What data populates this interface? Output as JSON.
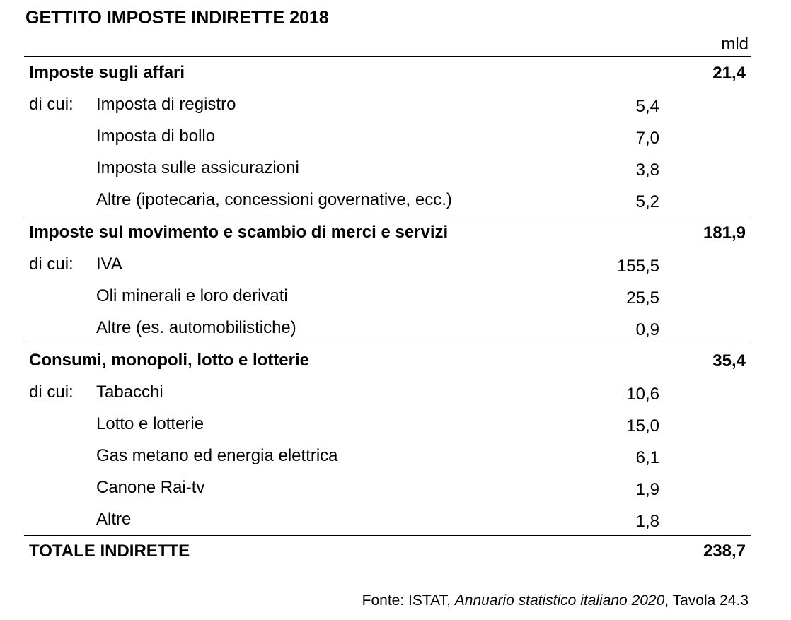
{
  "title": "GETTITO IMPOSTE INDIRETTE 2018",
  "unit": "mld",
  "prefix": "di cui:",
  "sections": [
    {
      "label": "Imposte sugli affari",
      "total": "21,4",
      "items": [
        {
          "label": "Imposta di registro",
          "value": "5,4"
        },
        {
          "label": "Imposta di bollo",
          "value": "7,0"
        },
        {
          "label": "Imposta sulle assicurazioni",
          "value": "3,8"
        },
        {
          "label": "Altre (ipotecaria, concessioni governative, ecc.)",
          "value": "5,2"
        }
      ]
    },
    {
      "label": "Imposte sul movimento e scambio di merci e servizi",
      "total": "181,9",
      "items": [
        {
          "label": "IVA",
          "value": "155,5"
        },
        {
          "label": "Oli minerali e loro derivati",
          "value": "25,5"
        },
        {
          "label": "Altre (es. automobilistiche)",
          "value": "0,9"
        }
      ]
    },
    {
      "label": "Consumi, monopoli, lotto e lotterie",
      "total": "35,4",
      "items": [
        {
          "label": "Tabacchi",
          "value": "10,6"
        },
        {
          "label": "Lotto e lotterie",
          "value": "15,0"
        },
        {
          "label": "Gas metano ed energia elettrica",
          "value": "6,1"
        },
        {
          "label": "Canone Rai-tv",
          "value": "1,9"
        },
        {
          "label": "Altre",
          "value": "1,8"
        }
      ]
    }
  ],
  "grand_total": {
    "label": "TOTALE INDIRETTE",
    "value": "238,7"
  },
  "source": {
    "prefix": "Fonte: ISTAT, ",
    "publication": "Annuario statistico italiano 2020",
    "suffix": ", Tavola 24.3"
  }
}
